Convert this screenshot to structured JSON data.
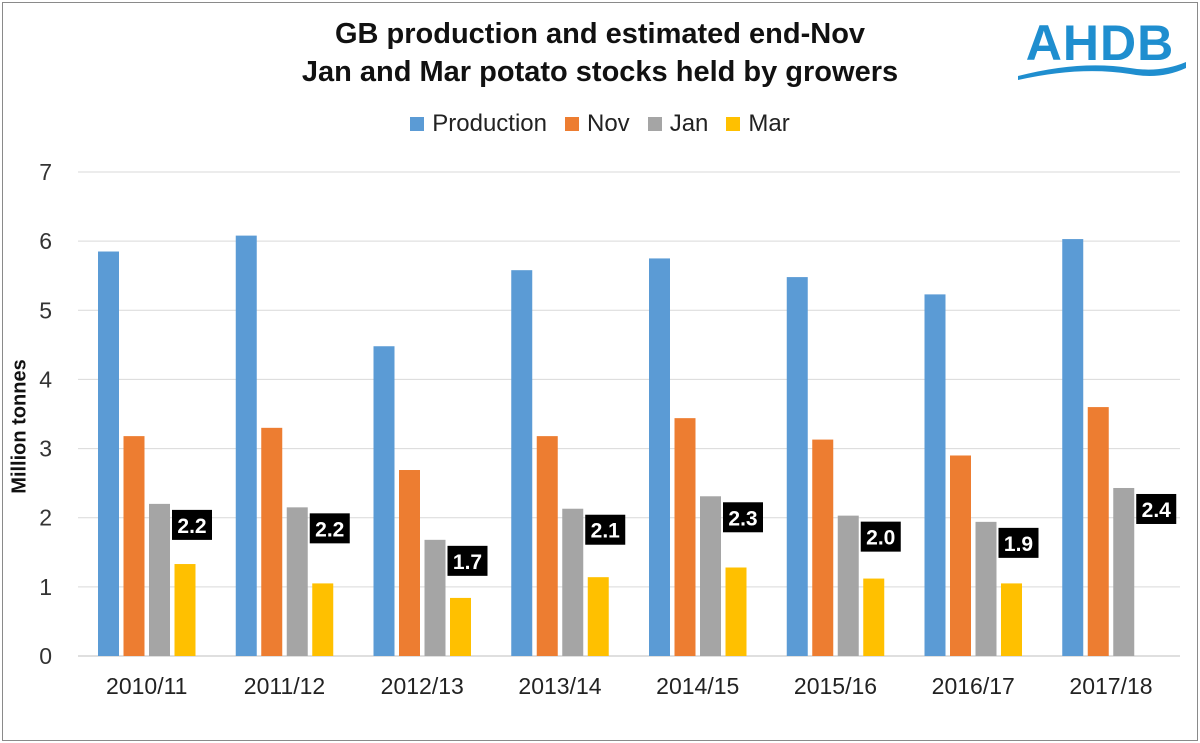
{
  "title_line1": "GB production and estimated end-Nov",
  "title_line2": "Jan and Mar potato stocks held by growers",
  "logo": "AHDB",
  "chart_data": {
    "type": "bar",
    "title": "GB production and estimated end-Nov Jan and Mar potato stocks held by growers",
    "ylabel": "Million tonnes",
    "xlabel": "",
    "ylim": [
      0,
      7
    ],
    "yticks": [
      0,
      1,
      2,
      3,
      4,
      5,
      6,
      7
    ],
    "grid": true,
    "legend_position": "top",
    "categories": [
      "2010/11",
      "2011/12",
      "2012/13",
      "2013/14",
      "2014/15",
      "2015/16",
      "2016/17",
      "2017/18"
    ],
    "series": [
      {
        "name": "Production",
        "color": "#5b9bd5",
        "values": [
          5.85,
          6.08,
          4.48,
          5.58,
          5.75,
          5.48,
          5.23,
          6.03
        ]
      },
      {
        "name": "Nov",
        "color": "#ed7d31",
        "values": [
          3.18,
          3.3,
          2.69,
          3.18,
          3.44,
          3.13,
          2.9,
          3.6
        ]
      },
      {
        "name": "Jan",
        "color": "#a5a5a5",
        "values": [
          2.2,
          2.15,
          1.68,
          2.13,
          2.31,
          2.03,
          1.94,
          2.43
        ]
      },
      {
        "name": "Mar",
        "color": "#ffc000",
        "values": [
          1.33,
          1.05,
          0.84,
          1.14,
          1.28,
          1.12,
          1.05,
          null
        ]
      }
    ],
    "annotations": [
      "2.2",
      "2.2",
      "1.7",
      "2.1",
      "2.3",
      "2.0",
      "1.9",
      "2.4"
    ]
  }
}
